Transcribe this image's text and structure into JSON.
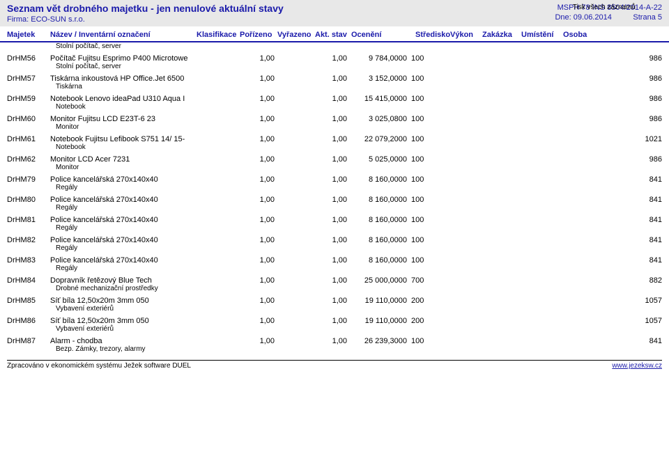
{
  "colors": {
    "heading": "#1a1aaa",
    "text": "#000000",
    "topbar_bg": "#e8e8e8",
    "border": "#1a1aaa",
    "background": "#ffffff"
  },
  "header": {
    "title": "Seznam vět drobného majetku - jen nenulové aktuální stavy",
    "firma_label": "Firma:",
    "firma_value": "ECO-SUN s.r.o.",
    "right_line1_a": "MSPH 78 INS 8504/",
    "right_line1_b": "2014-A-22",
    "right_line1_over": "Tisk všech záznamů",
    "right_line2_label": "Dne:",
    "right_line2_value": "09.06.2014",
    "right_line2_page": "Strana 5"
  },
  "columns": {
    "majetek": "Majetek",
    "nazev": "Název / Inventární označení",
    "klasifikace": "Klasifikace",
    "porizeno": "Pořízeno",
    "vyrazeno": "Vyřazeno",
    "akt_stav": "Akt. stav",
    "oceneni": "Ocenění",
    "stredisko": "Středisko",
    "vykon": "Výkon",
    "zakazka": "Zakázka",
    "umisteni": "Umístění",
    "osoba": "Osoba"
  },
  "pre_sub": "Stolní počítač, server",
  "rows": [
    {
      "maj": "DrHM56",
      "naz": "Počítač Fujitsu Esprimo P400 Microtowe",
      "sub": "Stolní počítač, server",
      "por": "1,00",
      "akt": "1,00",
      "ocen": "9 784,0000",
      "str": "100",
      "oso": "986"
    },
    {
      "maj": "DrHM57",
      "naz": "Tiskárna inkoustová HP Office.Jet 6500",
      "sub": "Tiskárna",
      "por": "1,00",
      "akt": "1,00",
      "ocen": "3 152,0000",
      "str": "100",
      "oso": "986"
    },
    {
      "maj": "DrHM59",
      "naz": "Notebook Lenovo ideaPad U310 Aqua I",
      "sub": "Notebook",
      "por": "1,00",
      "akt": "1,00",
      "ocen": "15 415,0000",
      "str": "100",
      "oso": "986"
    },
    {
      "maj": "DrHM60",
      "naz": "Monitor Fujitsu LCD E23T-6 23",
      "sub": "Monitor",
      "por": "1,00",
      "akt": "1,00",
      "ocen": "3 025,0800",
      "str": "100",
      "oso": "986"
    },
    {
      "maj": "DrHM61",
      "naz": "Notebook Fujitsu Lefibook S751 14/ 15-",
      "sub": "Notebook",
      "por": "1,00",
      "akt": "1,00",
      "ocen": "22 079,2000",
      "str": "100",
      "oso": "1021"
    },
    {
      "maj": "DrHM62",
      "naz": "Monitor LCD Acer 7231",
      "sub": "Monitor",
      "por": "1,00",
      "akt": "1,00",
      "ocen": "5 025,0000",
      "str": "100",
      "oso": "986"
    },
    {
      "maj": "DrHM79",
      "naz": "Police kancelářská 270x140x40",
      "sub": "Regály",
      "por": "1,00",
      "akt": "1,00",
      "ocen": "8 160,0000",
      "str": "100",
      "oso": "841"
    },
    {
      "maj": "DrHM80",
      "naz": "Police kancelářská 270x140x40",
      "sub": "Regály",
      "por": "1,00",
      "akt": "1,00",
      "ocen": "8 160,0000",
      "str": "100",
      "oso": "841"
    },
    {
      "maj": "DrHM81",
      "naz": "Police kancelářská 270x140x40",
      "sub": "Regály",
      "por": "1,00",
      "akt": "1,00",
      "ocen": "8 160,0000",
      "str": "100",
      "oso": "841"
    },
    {
      "maj": "DrHM82",
      "naz": "Police kancelářská 270x140x40",
      "sub": "Regály",
      "por": "1,00",
      "akt": "1,00",
      "ocen": "8 160,0000",
      "str": "100",
      "oso": "841"
    },
    {
      "maj": "DrHM83",
      "naz": "Police kancelářská 270x140x40",
      "sub": "Regály",
      "por": "1,00",
      "akt": "1,00",
      "ocen": "8 160,0000",
      "str": "100",
      "oso": "841"
    },
    {
      "maj": "DrHM84",
      "naz": "Dopravník řetězový Blue Tech",
      "sub": "Drobné mechanizační prostředky",
      "por": "1,00",
      "akt": "1,00",
      "ocen": "25 000,0000",
      "str": "700",
      "oso": "882"
    },
    {
      "maj": "DrHM85",
      "naz": "Síť bíla 12,50x20m 3mm 050",
      "sub": "Vybavení exteriérů",
      "por": "1,00",
      "akt": "1,00",
      "ocen": "19 110,0000",
      "str": "200",
      "oso": "1057"
    },
    {
      "maj": "DrHM86",
      "naz": "Síť bíla 12,50x20m 3mm 050",
      "sub": "Vybavení exteriérů",
      "por": "1,00",
      "akt": "1,00",
      "ocen": "19 110,0000",
      "str": "200",
      "oso": "1057"
    },
    {
      "maj": "DrHM87",
      "naz": "Alarm - chodba",
      "sub": "Bezp. Zámky, trezory, alarmy",
      "por": "1,00",
      "akt": "1,00",
      "ocen": "26 239,3000",
      "str": "100",
      "oso": "841"
    }
  ],
  "footer": {
    "left": "Zpracováno v ekonomickém systému Ježek software DUEL",
    "right": "www.jezeksw.cz"
  }
}
